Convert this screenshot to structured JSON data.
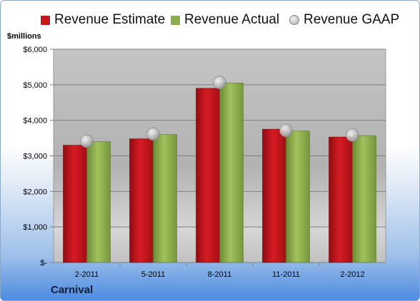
{
  "chart_data": {
    "type": "bar",
    "categories": [
      "2-2011",
      "5-2011",
      "8-2011",
      "11-2011",
      "2-2012"
    ],
    "series": [
      {
        "name": "Revenue Estimate",
        "kind": "bar",
        "color": "#c8141b",
        "values": [
          3300,
          3480,
          4900,
          3750,
          3530
        ]
      },
      {
        "name": "Revenue Actual",
        "kind": "bar",
        "color": "#8cad4d",
        "values": [
          3400,
          3600,
          5050,
          3700,
          3570
        ]
      },
      {
        "name": "Revenue GAAP",
        "kind": "point",
        "color": "#b8b8b8",
        "values": [
          3410,
          3610,
          5060,
          3710,
          3580
        ]
      }
    ],
    "ylabel": "$millions",
    "ylim": [
      0,
      6000
    ],
    "yticks": [
      0,
      1000,
      2000,
      3000,
      4000,
      5000,
      6000
    ],
    "ytick_labels": [
      "$-",
      "$1,000",
      "$2,000",
      "$3,000",
      "$4,000",
      "$5,000",
      "$6,000"
    ],
    "grid": true,
    "legend_position": "top",
    "footer_label": "Carnival"
  }
}
